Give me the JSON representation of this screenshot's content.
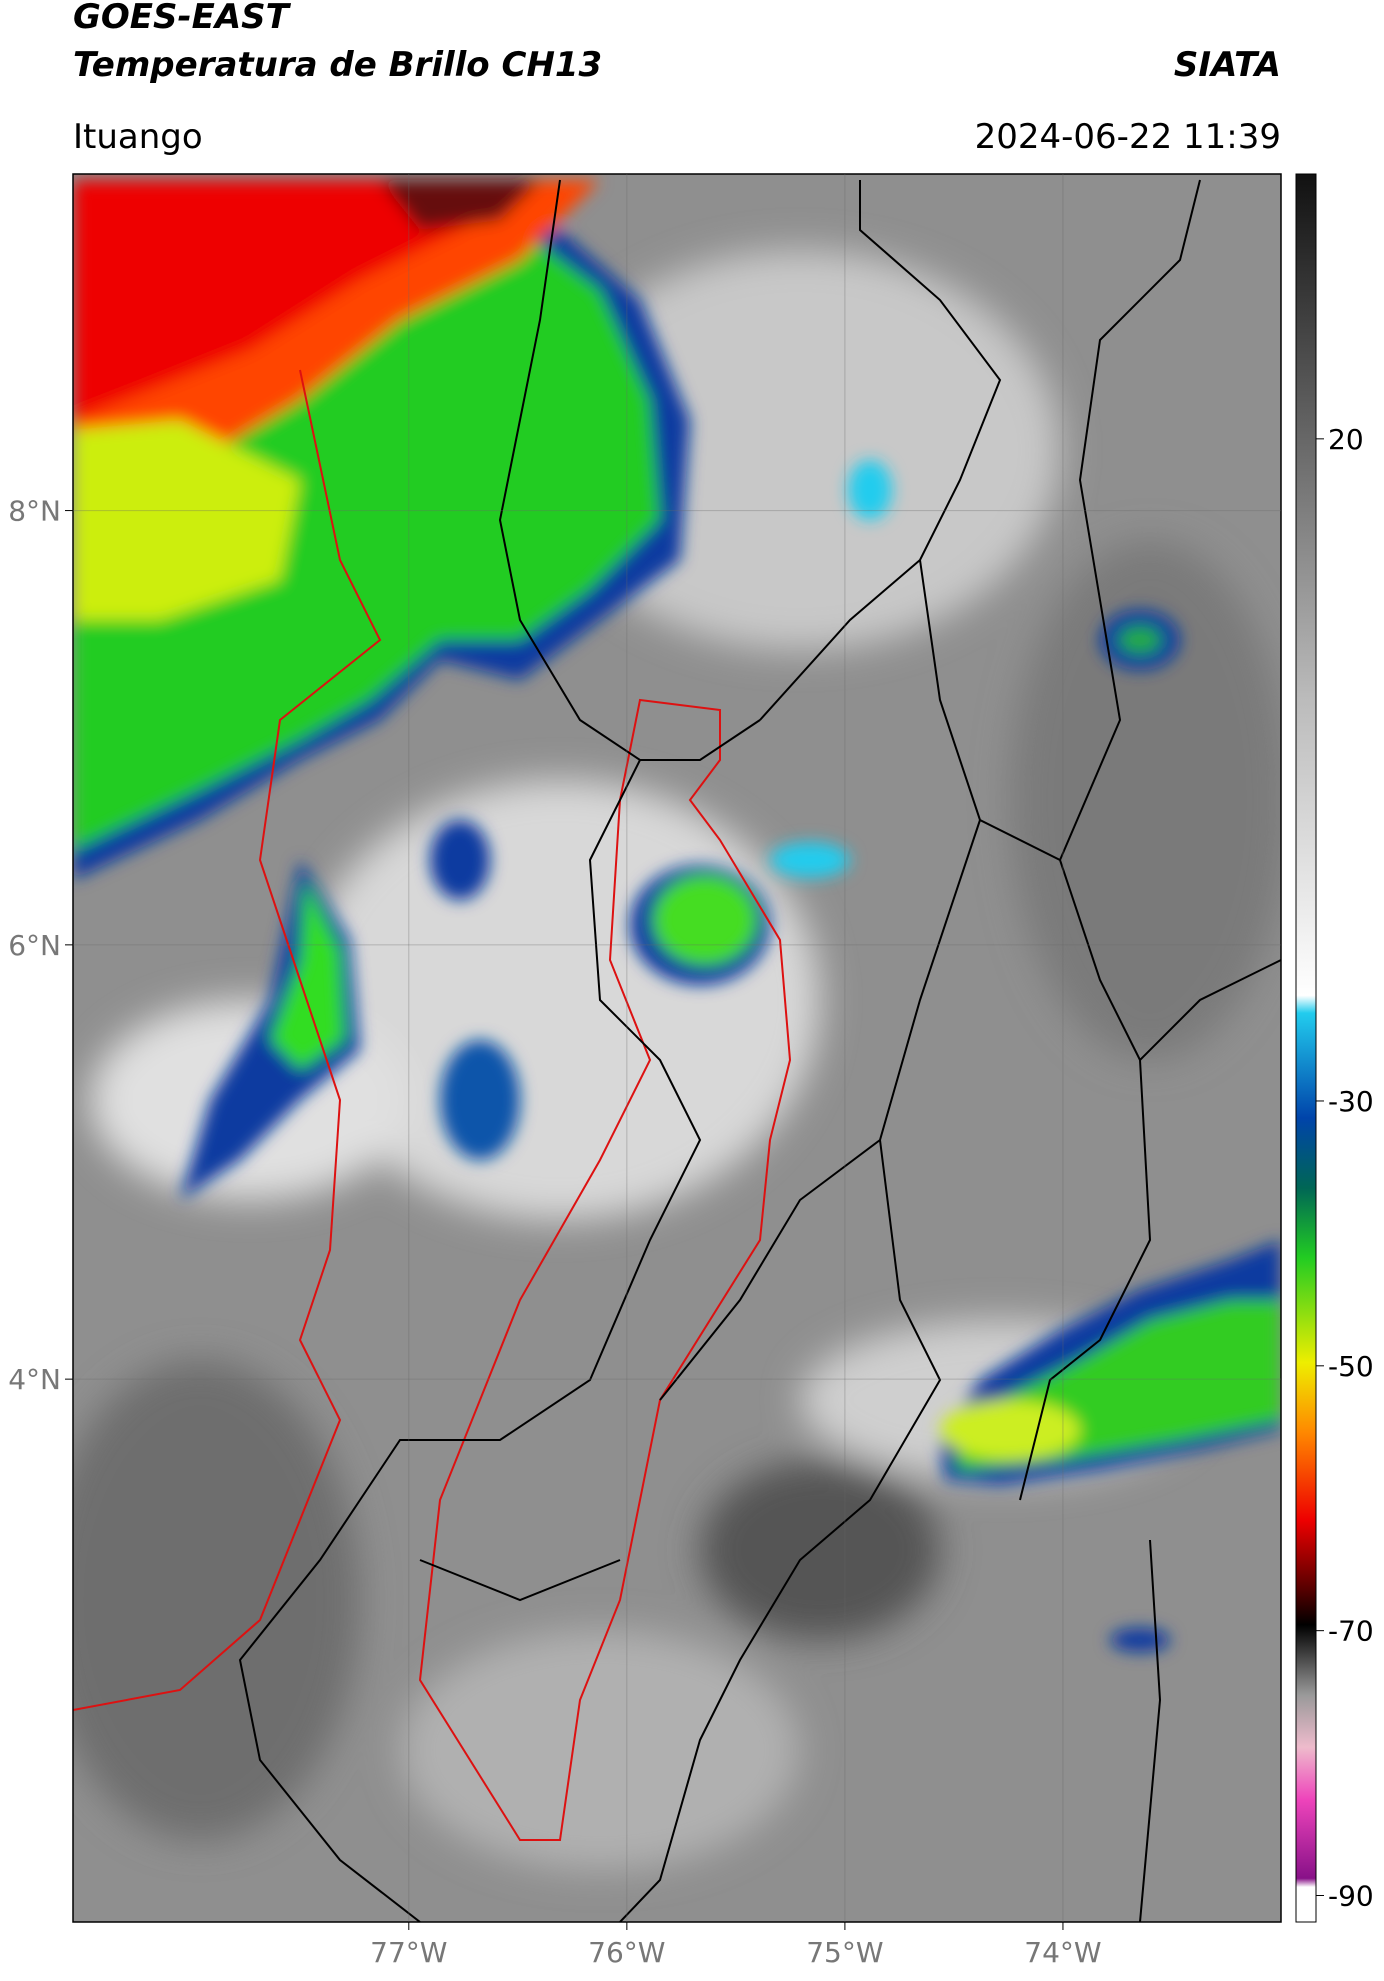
{
  "header": {
    "title": "GOES-EAST",
    "subtitle": "Temperatura de Brillo CH13",
    "source": "SIATA",
    "location": "Ituango",
    "timestamp": "2024-06-22 11:39"
  },
  "map": {
    "xlim": [
      -78.54,
      -73.0
    ],
    "ylim": [
      1.5,
      9.55
    ],
    "xticks": [
      {
        "value": -77,
        "label": "77°W"
      },
      {
        "value": -76,
        "label": "76°W"
      },
      {
        "value": -75,
        "label": "75°W"
      },
      {
        "value": -74,
        "label": "74°W"
      }
    ],
    "yticks": [
      {
        "value": 8,
        "label": "8°N"
      },
      {
        "value": 6,
        "label": "6°N"
      },
      {
        "value": 4,
        "label": "4°N"
      }
    ]
  },
  "colorbar": {
    "lim": [
      -92,
      40
    ],
    "ticks": [
      20,
      -30,
      -50,
      -70,
      -90
    ]
  }
}
